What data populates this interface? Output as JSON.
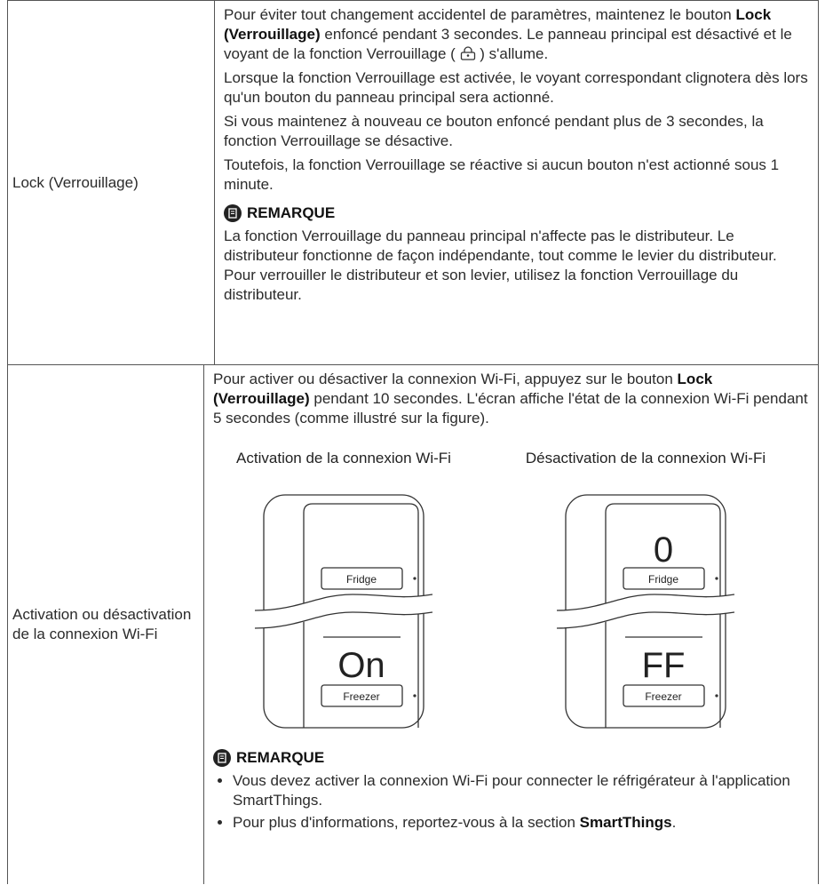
{
  "table": {
    "rows": [
      {
        "label": "Lock (Verrouillage)",
        "paragraphs": [
          [
            "Pour éviter tout changement accidentel de paramètres, maintenez le bouton ",
            "Lock (Verrouillage)",
            " enfoncé pendant 3 secondes. Le panneau principal est désactivé et le voyant de la fonction Verrouillage (",
            ") s'allume."
          ],
          [
            "Lorsque la fonction Verrouillage est activée, le voyant correspondant clignotera dès lors qu'un bouton du panneau principal sera actionné."
          ],
          [
            "Si vous maintenez à nouveau ce bouton enfoncé pendant plus de 3 secondes, la fonction Verrouillage se désactive."
          ],
          [
            "Toutefois, la fonction Verrouillage se réactive si aucun bouton n'est actionné sous 1 minute."
          ]
        ],
        "note": {
          "title": "REMARQUE",
          "text": "La fonction Verrouillage du panneau principal n'affecte pas le distributeur. Le distributeur fonctionne de façon indépendante, tout comme le levier du distributeur. Pour verrouiller le distributeur et son levier, utilisez la fonction Verrouillage du distributeur."
        }
      },
      {
        "label": "Activation ou désactivation de la connexion Wi-Fi",
        "paragraphs": [
          [
            "Pour activer ou désactiver la connexion Wi-Fi, appuyez sur le bouton ",
            "Lock (Verrouillage)",
            " pendant 10 secondes. L'écran affiche l'état de la connexion Wi-Fi pendant 5 secondes (comme illustré sur la figure)."
          ]
        ],
        "figures": [
          {
            "caption": "Activation de la connexion Wi-Fi",
            "fridge": "Fridge",
            "freezer_display": "On",
            "freezer": "Freezer"
          },
          {
            "caption": "Désactivation de la connexion Wi-Fi",
            "fridge_display": "0",
            "fridge": "Fridge",
            "freezer_display": "FF",
            "freezer": "Freezer"
          }
        ],
        "note": {
          "title": "REMARQUE",
          "bullets": [
            [
              "Vous devez activer la connexion Wi-Fi pour connecter le réfrigérateur à l'application SmartThings."
            ],
            [
              "Pour plus d'informations, reportez-vous à la section ",
              "SmartThings",
              "."
            ]
          ]
        }
      }
    ]
  }
}
